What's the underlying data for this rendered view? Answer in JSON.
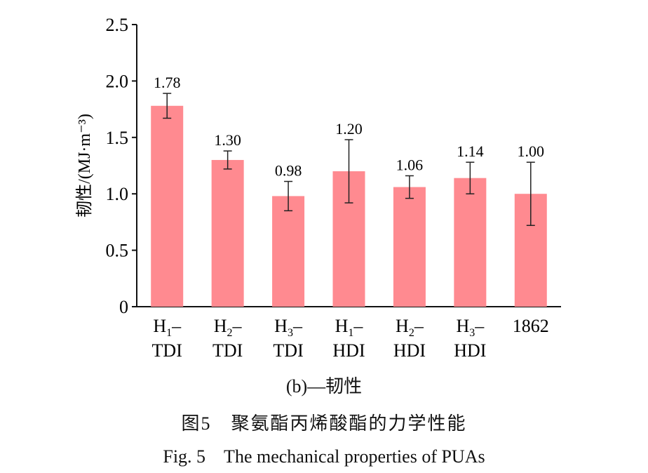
{
  "chart_data": {
    "type": "bar",
    "categories": [
      {
        "main": "H",
        "sub": "1",
        "line2": "TDI"
      },
      {
        "main": "H",
        "sub": "2",
        "line2": "TDI"
      },
      {
        "main": "H",
        "sub": "3",
        "line2": "TDI"
      },
      {
        "main": "H",
        "sub": "1",
        "line2": "HDI"
      },
      {
        "main": "H",
        "sub": "2",
        "line2": "HDI"
      },
      {
        "main": "H",
        "sub": "3",
        "line2": "HDI"
      },
      {
        "main": "1862",
        "sub": "",
        "line2": ""
      }
    ],
    "values": [
      1.78,
      1.3,
      0.98,
      1.2,
      1.06,
      1.14,
      1.0
    ],
    "value_labels": [
      "1.78",
      "1.30",
      "0.98",
      "1.20",
      "1.06",
      "1.14",
      "1.00"
    ],
    "errors": [
      0.11,
      0.08,
      0.13,
      0.28,
      0.1,
      0.14,
      0.28
    ],
    "ylabel": "韧性/(MJ·m⁻³)",
    "ylim": [
      0,
      2.5
    ],
    "yticks": [
      0,
      0.5,
      1.0,
      1.5,
      2.0,
      2.5
    ],
    "ytick_labels": [
      "0",
      "0.5",
      "1.0",
      "1.5",
      "2.0",
      "2.5"
    ],
    "grid": false,
    "bar_color": "#ff8a90"
  },
  "captions": {
    "subfigure": "(b)—韧性",
    "chinese": "图5　聚氨酯丙烯酸酯的力学性能",
    "english": "Fig. 5　The mechanical properties of PUAs"
  }
}
